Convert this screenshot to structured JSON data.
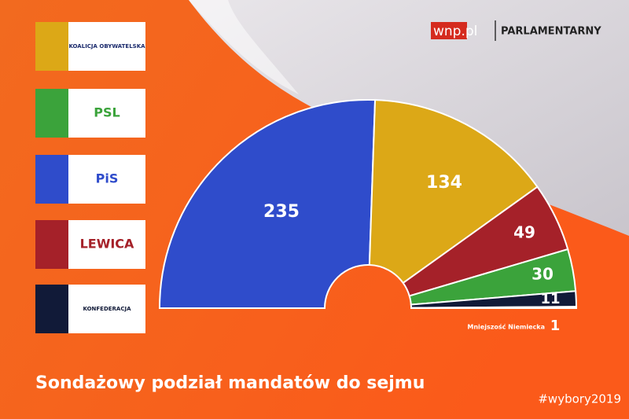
{
  "chart_data": {
    "type": "parliament",
    "title": "Sondażowy podział mandatów do sejmu",
    "brand": "wnp.pl",
    "section": "PARLAMENTARNY",
    "hashtag": "#wybory2019",
    "categories": [
      "PiS",
      "KOALICJA OBYWATELSKA",
      "LEWICA",
      "PSL",
      "KONFEDERACJA",
      "Mniejszość Niemiecka"
    ],
    "values": [
      235,
      134,
      49,
      30,
      11,
      1
    ],
    "colors": [
      "#2f4ccb",
      "#dca817",
      "#a52129",
      "#3ba33b",
      "#111a38",
      "#ffffff"
    ]
  }
}
